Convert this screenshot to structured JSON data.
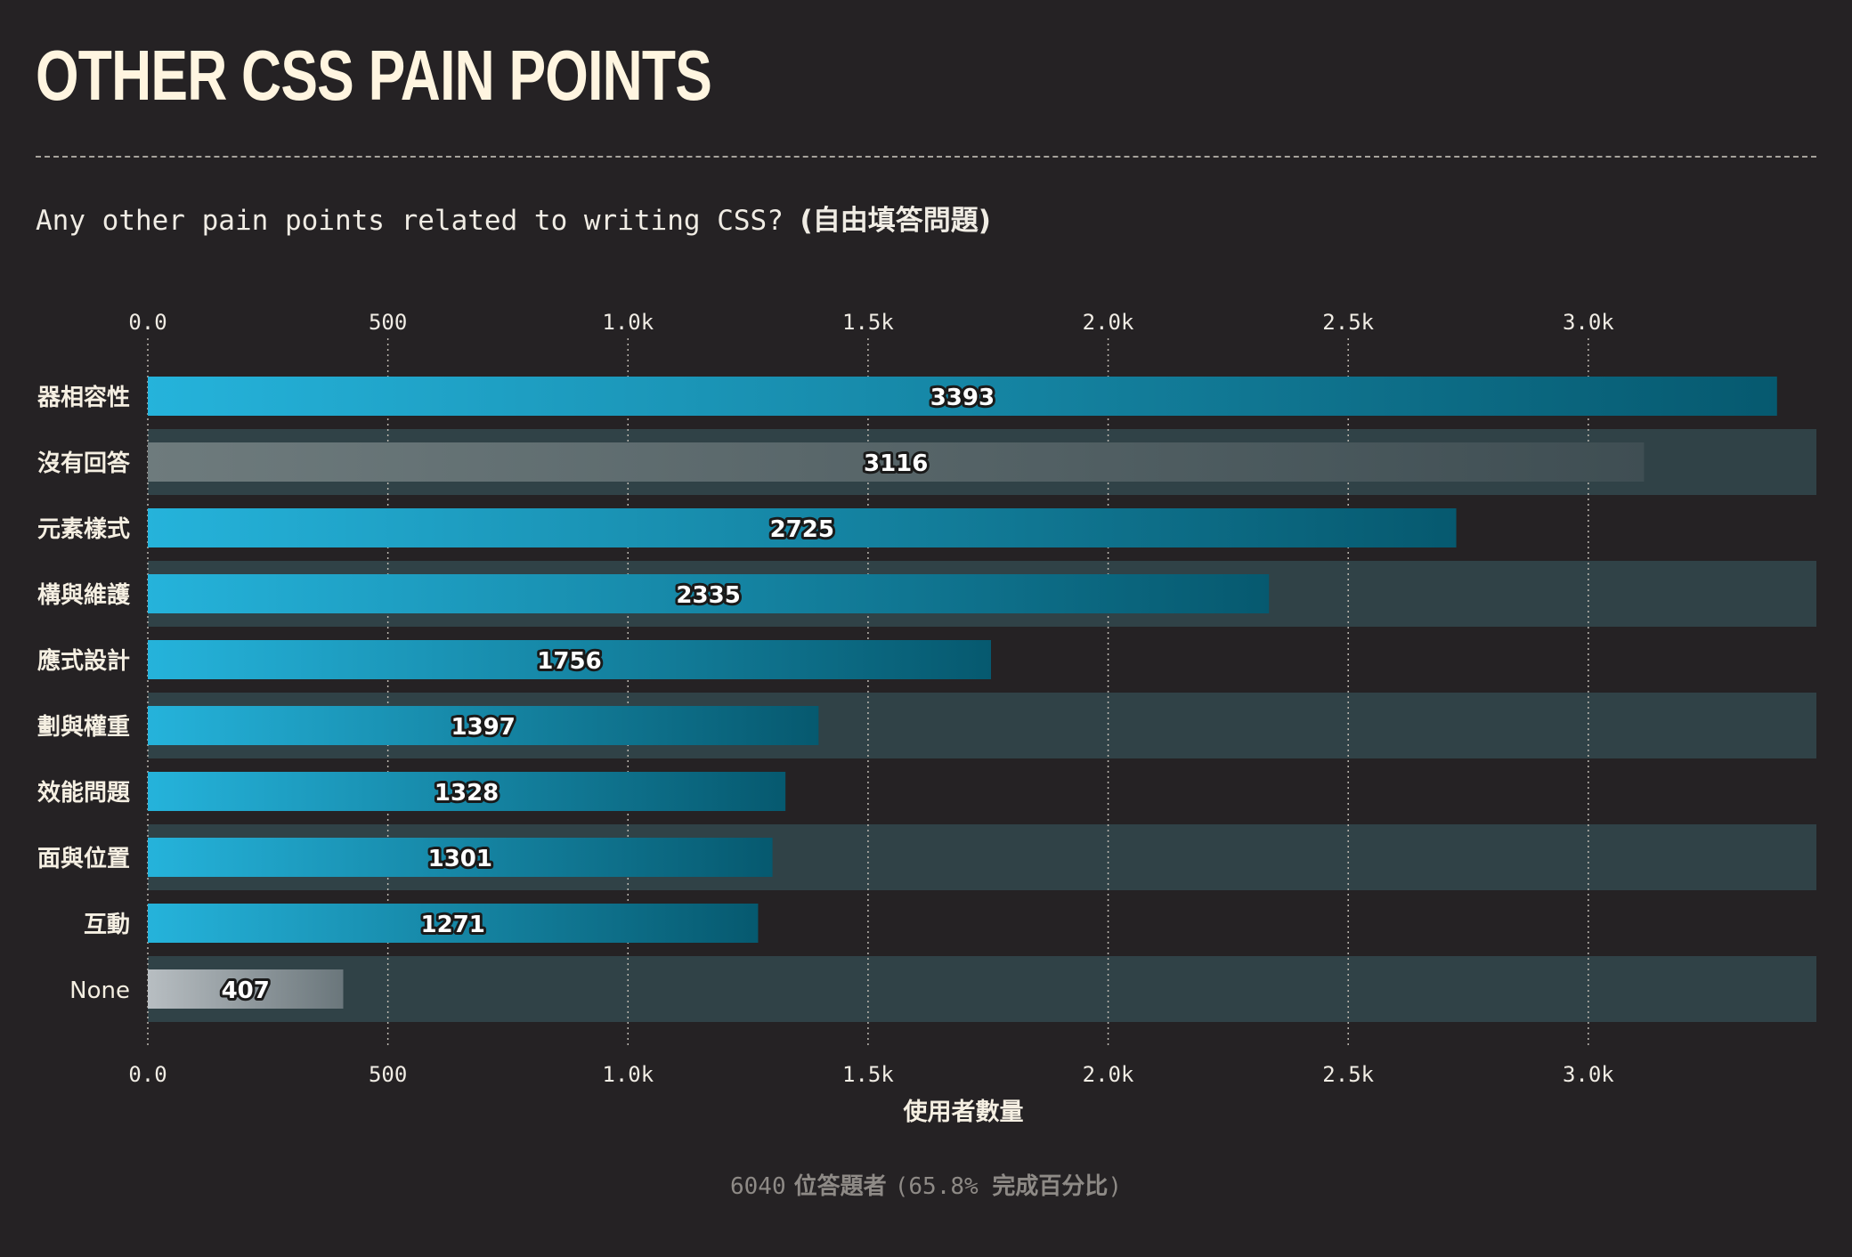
{
  "header": {
    "title": "OTHER CSS PAIN POINTS",
    "question_text": "Any other pain points related to writing CSS? ",
    "question_note": "(自由填答問題)"
  },
  "footer": {
    "count": "6040",
    "respondents_label": " 位答題者 ",
    "pct": "(65.8% ",
    "pct_label": "完成百分比",
    "close": ")"
  },
  "colors": {
    "accent_start": "#25b3db",
    "accent_end": "#06596f",
    "muted_start": "#6e7b7d",
    "muted_end": "#3f4e53",
    "none_start": "#b8bec2",
    "none_end": "#6a767b",
    "band": "#304247",
    "background": "#252224"
  },
  "chart_data": {
    "type": "bar",
    "orientation": "horizontal",
    "xlabel": "使用者數量",
    "xlim": [
      0,
      3475
    ],
    "ticks": [
      0,
      500,
      1000,
      1500,
      2000,
      2500,
      3000
    ],
    "tick_labels": [
      "0.0",
      "500",
      "1.0k",
      "1.5k",
      "2.0k",
      "2.5k",
      "3.0k"
    ],
    "grid": "vertical-dotted",
    "categories": [
      "器相容性",
      "沒有回答",
      "元素樣式",
      "構與維護",
      "應式設計",
      "劃與權重",
      "效能問題",
      "面與位置",
      "互動",
      "None"
    ],
    "values": [
      3393,
      3116,
      2725,
      2335,
      1756,
      1397,
      1328,
      1301,
      1271,
      407
    ],
    "value_labels": [
      "3393",
      "3116",
      "2725",
      "2335",
      "1756",
      "1397",
      "1328",
      "1301",
      "1271",
      "407"
    ],
    "bar_styles": [
      "accent",
      "muted",
      "accent",
      "accent",
      "accent",
      "accent",
      "accent",
      "accent",
      "accent",
      "none"
    ]
  }
}
